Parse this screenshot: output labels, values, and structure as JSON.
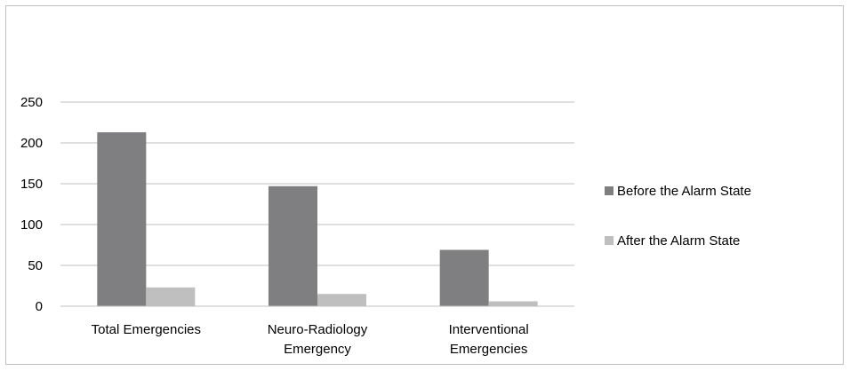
{
  "chart_data": {
    "type": "bar",
    "categories": [
      [
        "Total Emergencies"
      ],
      [
        "Neuro-Radiology",
        "Emergency"
      ],
      [
        "Interventional",
        "Emergencies"
      ]
    ],
    "series": [
      {
        "name": "Before the Alarm State",
        "values": [
          213,
          147,
          69
        ],
        "color": "#7f7f81"
      },
      {
        "name": "After the Alarm State",
        "values": [
          23,
          15,
          6
        ],
        "color": "#bfbfbf"
      }
    ],
    "yticks": [
      "0",
      "50",
      "100",
      "150",
      "200",
      "250"
    ],
    "ylim": [
      0,
      250
    ],
    "grid": true,
    "legend_position": "right"
  }
}
